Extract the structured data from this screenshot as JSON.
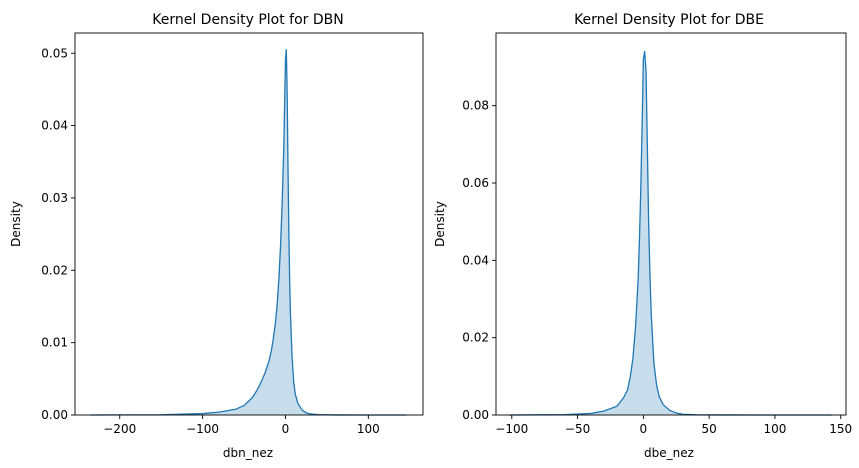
{
  "chart_data": [
    {
      "type": "area",
      "title": "Kernel Density Plot for DBN",
      "xlabel": "dbn_nez",
      "ylabel": "Density",
      "xlim": [
        -254,
        166
      ],
      "ylim": [
        0,
        0.0528
      ],
      "xticks": [
        -200,
        -100,
        0,
        100
      ],
      "xtick_labels": [
        "−200",
        "−100",
        "0",
        "100"
      ],
      "yticks": [
        0,
        0.01,
        0.02,
        0.03,
        0.04,
        0.05
      ],
      "ytick_labels": [
        "0.00",
        "0.01",
        "0.02",
        "0.03",
        "0.04",
        "0.05"
      ],
      "grid": false,
      "legend": "none",
      "series": [
        {
          "color": "#1f77b4",
          "fill_color": "#1f77b4",
          "fill_opacity": 0.25,
          "x": [
            -235,
            -150,
            -100,
            -80,
            -60,
            -50,
            -40,
            -35,
            -30,
            -25,
            -20,
            -17,
            -15,
            -12,
            -10,
            -8,
            -6,
            -4,
            -2,
            -1,
            0,
            1,
            2,
            3,
            4,
            5,
            6,
            8,
            10,
            12,
            15,
            20,
            25,
            30,
            40,
            60,
            100,
            146
          ],
          "y": [
            0,
            3e-05,
            0.0002,
            0.0004,
            0.0008,
            0.0013,
            0.0024,
            0.0033,
            0.0044,
            0.0057,
            0.0074,
            0.0089,
            0.0103,
            0.0128,
            0.0153,
            0.0187,
            0.0232,
            0.0292,
            0.037,
            0.043,
            0.049,
            0.0505,
            0.045,
            0.035,
            0.026,
            0.019,
            0.014,
            0.008,
            0.0045,
            0.0028,
            0.0016,
            0.0007,
            0.0003,
            0.00015,
            5e-05,
            1e-05,
            0,
            0
          ]
        }
      ]
    },
    {
      "type": "area",
      "title": "Kernel Density Plot for DBE",
      "xlabel": "dbe_nez",
      "ylabel": "Density",
      "xlim": [
        -112,
        154
      ],
      "ylim": [
        0,
        0.0988
      ],
      "xticks": [
        -100,
        -50,
        0,
        50,
        100,
        150
      ],
      "xtick_labels": [
        "−100",
        "−50",
        "0",
        "50",
        "100",
        "150"
      ],
      "yticks": [
        0,
        0.02,
        0.04,
        0.06,
        0.08
      ],
      "ytick_labels": [
        "0.00",
        "0.02",
        "0.04",
        "0.06",
        "0.08"
      ],
      "grid": false,
      "legend": "none",
      "series": [
        {
          "color": "#1f77b4",
          "fill_color": "#1f77b4",
          "fill_opacity": 0.25,
          "x": [
            -102,
            -80,
            -60,
            -40,
            -30,
            -20,
            -15,
            -12,
            -10,
            -8,
            -6,
            -4,
            -3,
            -2,
            -1,
            0,
            1,
            2,
            3,
            4,
            5,
            6,
            8,
            10,
            12,
            15,
            20,
            25,
            30,
            40,
            60,
            100,
            143
          ],
          "y": [
            0,
            5e-05,
            0.0001,
            0.0004,
            0.001,
            0.0023,
            0.0045,
            0.0065,
            0.0098,
            0.0145,
            0.0225,
            0.035,
            0.045,
            0.058,
            0.074,
            0.092,
            0.094,
            0.089,
            0.07,
            0.05,
            0.036,
            0.026,
            0.0135,
            0.0078,
            0.0048,
            0.0027,
            0.0012,
            0.0005,
            0.0002,
            5e-05,
            1e-05,
            0,
            0
          ]
        }
      ]
    }
  ]
}
